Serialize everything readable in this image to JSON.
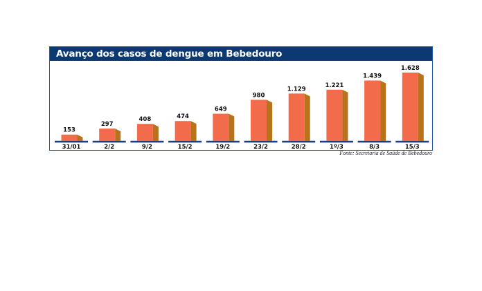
{
  "chart_data": {
    "type": "bar",
    "title": "Avanço dos casos de dengue em Bebedouro",
    "categories": [
      "31/01",
      "2/2",
      "9/2",
      "15/2",
      "19/2",
      "23/2",
      "28/2",
      "1º/3",
      "8/3",
      "15/3"
    ],
    "values": [
      153,
      297,
      408,
      474,
      649,
      980,
      1129,
      1221,
      1439,
      1628
    ],
    "value_labels": [
      "153",
      "297",
      "408",
      "474",
      "649",
      "980",
      "1.129",
      "1.221",
      "1.439",
      "1.628"
    ],
    "xlabel": "",
    "ylabel": "",
    "ylim": [
      0,
      1628
    ],
    "grid": false,
    "source": "Fonte: Secretaria de Saúde de Bebedouro",
    "colors": {
      "bar_front": "#f26b4a",
      "bar_side": "#b8731a",
      "baseline": "#1b3f7a",
      "title_bg": "#0b3a72",
      "frame": "#1e5aa8"
    }
  }
}
